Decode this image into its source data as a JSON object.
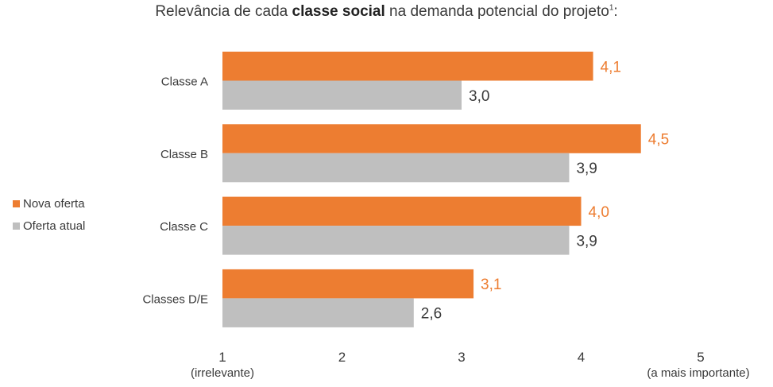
{
  "title": {
    "prefix": "Relevância de cada ",
    "bold": "classe social",
    "suffix": " na demanda potencial do projeto",
    "footnote": "1",
    "end": ":"
  },
  "legend": [
    {
      "label": "Nova oferta",
      "color": "#ED7D31"
    },
    {
      "label": "Oferta atual",
      "color": "#BFBFBF"
    }
  ],
  "chart_data": {
    "type": "bar",
    "orientation": "horizontal",
    "categories": [
      "Classe A",
      "Classe B",
      "Classe C",
      "Classes D/E"
    ],
    "series": [
      {
        "name": "Nova oferta",
        "values": [
          4.1,
          4.5,
          4.0,
          3.1
        ],
        "labels": [
          "4,1",
          "4,5",
          "4,0",
          "3,1"
        ],
        "color": "#ED7D31",
        "label_color": "#ED7D31"
      },
      {
        "name": "Oferta atual",
        "values": [
          3.0,
          3.9,
          3.9,
          2.6
        ],
        "labels": [
          "3,0",
          "3,9",
          "3,9",
          "2,6"
        ],
        "color": "#BFBFBF",
        "label_color": "#3a3a3a"
      }
    ],
    "xlim": [
      1,
      5
    ],
    "ticks": [
      {
        "value": 1,
        "label": "1",
        "sublabel": "(irrelevante)"
      },
      {
        "value": 2,
        "label": "2",
        "sublabel": ""
      },
      {
        "value": 3,
        "label": "3",
        "sublabel": ""
      },
      {
        "value": 4,
        "label": "4",
        "sublabel": ""
      },
      {
        "value": 5,
        "label": "5",
        "sublabel": "(a mais importante)"
      }
    ],
    "title": "Relevância de cada classe social na demanda potencial do projeto",
    "legend_position": "left"
  }
}
